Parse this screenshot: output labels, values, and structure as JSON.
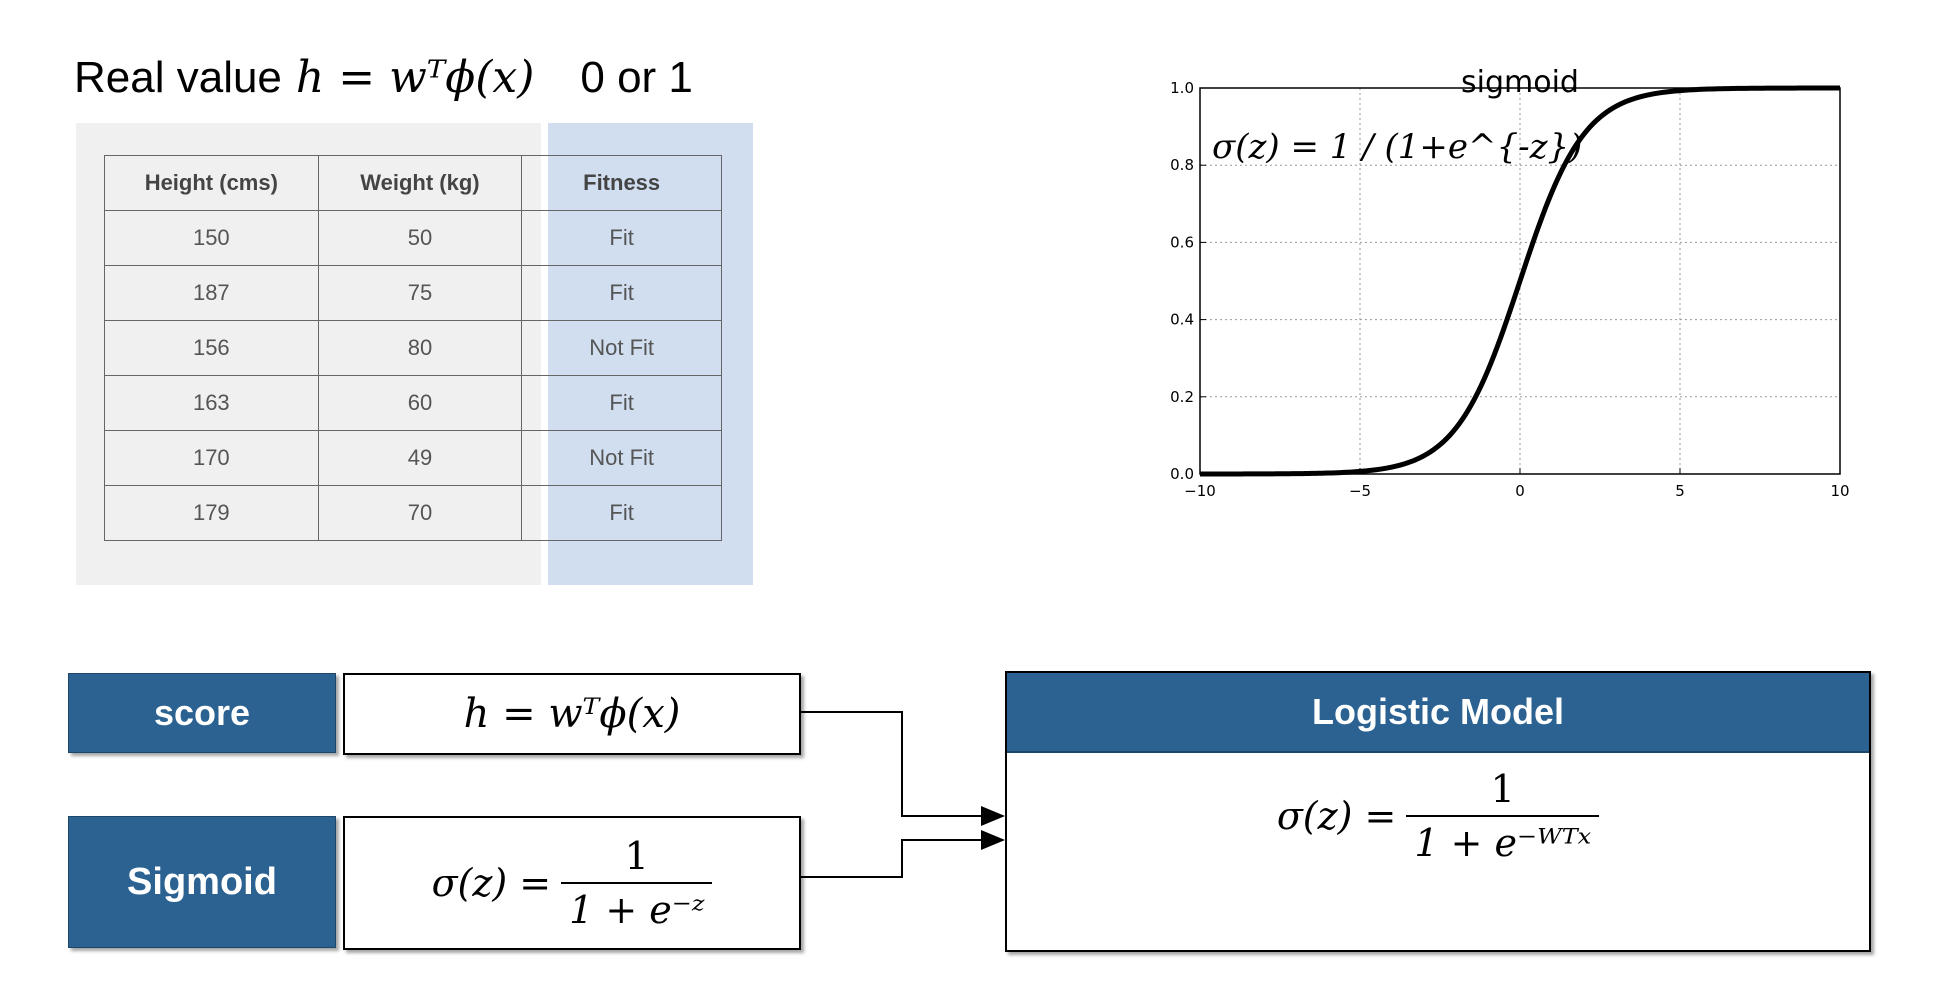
{
  "header": {
    "real_value_label": "Real value",
    "score_formula": "h = wᵀϕ(x)",
    "binary_label": "0 or 1"
  },
  "table": {
    "columns": [
      "Height (cms)",
      "Weight (kg)",
      "Fitness"
    ],
    "rows": [
      [
        "150",
        "50",
        "Fit"
      ],
      [
        "187",
        "75",
        "Fit"
      ],
      [
        "156",
        "80",
        "Not Fit"
      ],
      [
        "163",
        "60",
        "Fit"
      ],
      [
        "170",
        "49",
        "Not Fit"
      ],
      [
        "179",
        "70",
        "Fit"
      ]
    ]
  },
  "chart_data": {
    "type": "line",
    "title": "sigmoid",
    "annotation": "σ(z) = 1 / (1+e^{-z})",
    "xlim": [
      -10,
      10
    ],
    "ylim": [
      0.0,
      1.0
    ],
    "xticks": [
      "−10",
      "−5",
      "0",
      "5",
      "10"
    ],
    "yticks": [
      "0.0",
      "0.2",
      "0.4",
      "0.6",
      "0.8",
      "1.0"
    ],
    "xtick_values": [
      -10,
      -5,
      0,
      5,
      10
    ],
    "ytick_values": [
      0.0,
      0.2,
      0.4,
      0.6,
      0.8,
      1.0
    ],
    "grid": true,
    "series": [
      {
        "x": [
          -10,
          -8,
          -6,
          -5,
          -4,
          -3,
          -2,
          -1,
          0,
          1,
          2,
          3,
          4,
          5,
          6,
          8,
          10
        ],
        "y": [
          4.54e-05,
          0.000335,
          0.00247,
          0.00669,
          0.018,
          0.0474,
          0.1192,
          0.2689,
          0.5,
          0.7311,
          0.8808,
          0.9526,
          0.982,
          0.9933,
          0.9975,
          0.99966,
          0.99995
        ]
      }
    ]
  },
  "score_box": {
    "label": "score",
    "formula": "h = wᵀϕ(x)"
  },
  "sigmoid_box": {
    "label": "Sigmoid",
    "lhs": "σ(z) =",
    "numerator": "1",
    "denominator": "1 + e⁻ᶻ"
  },
  "model_box": {
    "title": "Logistic Model",
    "lhs": "σ(z) =",
    "numerator": "1",
    "denominator": "1 + e⁻ᵂᵀˣ"
  },
  "colors": {
    "label_bg": "#2b6292",
    "table_bg": "#f0f0f0",
    "fitness_highlight": "#d0deef"
  }
}
